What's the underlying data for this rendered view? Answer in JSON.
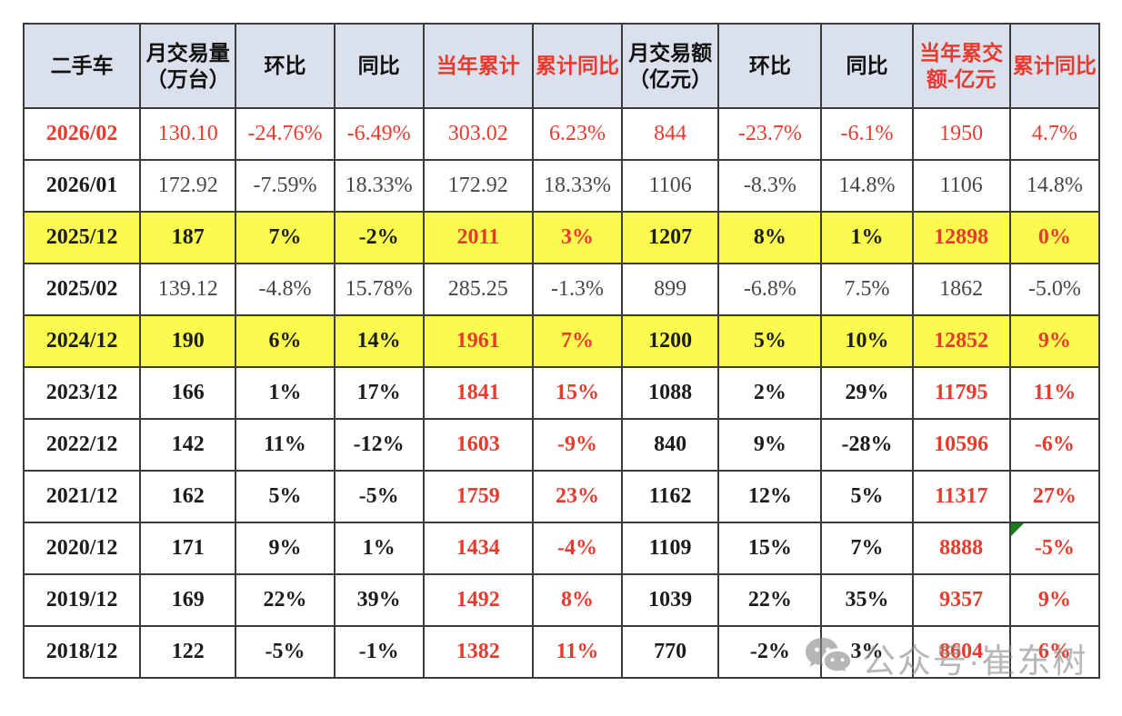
{
  "table": {
    "headers": [
      {
        "label": "二手车",
        "red": false
      },
      {
        "label": "月交易量\n（万台）",
        "red": false
      },
      {
        "label": "环比",
        "red": false
      },
      {
        "label": "同比",
        "red": false
      },
      {
        "label": "当年累计",
        "red": true
      },
      {
        "label": "累计同比",
        "red": true
      },
      {
        "label": "月交易额\n（亿元）",
        "red": false
      },
      {
        "label": "环比",
        "red": false
      },
      {
        "label": "同比",
        "red": false
      },
      {
        "label": "当年累交\n额-亿元",
        "red": true
      },
      {
        "label": "累计同比",
        "red": true
      }
    ],
    "red_value_columns": [
      3,
      4,
      8,
      9
    ],
    "rows": [
      {
        "date": "2026/02",
        "values": [
          "130.10",
          "-24.76%",
          "-6.49%",
          "303.02",
          "6.23%",
          "844",
          "-23.7%",
          "-6.1%",
          "1950",
          "4.7%"
        ],
        "highlight": false,
        "bold": false,
        "all_red": true,
        "cum_red": true,
        "corner_marker_col": null
      },
      {
        "date": "2026/01",
        "values": [
          "172.92",
          "-7.59%",
          "18.33%",
          "172.92",
          "18.33%",
          "1106",
          "-8.3%",
          "14.8%",
          "1106",
          "14.8%"
        ],
        "highlight": false,
        "bold": false,
        "all_red": false,
        "cum_red": false,
        "corner_marker_col": null
      },
      {
        "date": "2025/12",
        "values": [
          "187",
          "7%",
          "-2%",
          "2011",
          "3%",
          "1207",
          "8%",
          "1%",
          "12898",
          "0%"
        ],
        "highlight": true,
        "bold": true,
        "all_red": false,
        "cum_red": true,
        "corner_marker_col": null
      },
      {
        "date": "2025/02",
        "values": [
          "139.12",
          "-4.8%",
          "15.78%",
          "285.25",
          "-1.3%",
          "899",
          "-6.8%",
          "7.5%",
          "1862",
          "-5.0%"
        ],
        "highlight": false,
        "bold": false,
        "all_red": false,
        "cum_red": false,
        "corner_marker_col": null
      },
      {
        "date": "2024/12",
        "values": [
          "190",
          "6%",
          "14%",
          "1961",
          "7%",
          "1200",
          "5%",
          "10%",
          "12852",
          "9%"
        ],
        "highlight": true,
        "bold": true,
        "all_red": false,
        "cum_red": true,
        "corner_marker_col": null
      },
      {
        "date": "2023/12",
        "values": [
          "166",
          "1%",
          "17%",
          "1841",
          "15%",
          "1088",
          "2%",
          "29%",
          "11795",
          "11%"
        ],
        "highlight": false,
        "bold": true,
        "all_red": false,
        "cum_red": true,
        "corner_marker_col": null
      },
      {
        "date": "2022/12",
        "values": [
          "142",
          "11%",
          "-12%",
          "1603",
          "-9%",
          "840",
          "9%",
          "-28%",
          "10596",
          "-6%"
        ],
        "highlight": false,
        "bold": true,
        "all_red": false,
        "cum_red": true,
        "corner_marker_col": null
      },
      {
        "date": "2021/12",
        "values": [
          "162",
          "5%",
          "-5%",
          "1759",
          "23%",
          "1162",
          "12%",
          "5%",
          "11317",
          "27%"
        ],
        "highlight": false,
        "bold": true,
        "all_red": false,
        "cum_red": true,
        "corner_marker_col": null
      },
      {
        "date": "2020/12",
        "values": [
          "171",
          "9%",
          "1%",
          "1434",
          "-4%",
          "1109",
          "15%",
          "7%",
          "8888",
          "-5%"
        ],
        "highlight": false,
        "bold": true,
        "all_red": false,
        "cum_red": true,
        "corner_marker_col": 9
      },
      {
        "date": "2019/12",
        "values": [
          "169",
          "22%",
          "39%",
          "1492",
          "8%",
          "1039",
          "22%",
          "35%",
          "9357",
          "9%"
        ],
        "highlight": false,
        "bold": true,
        "all_red": false,
        "cum_red": true,
        "corner_marker_col": null
      },
      {
        "date": "2018/12",
        "values": [
          "122",
          "-5%",
          "-1%",
          "1382",
          "11%",
          "770",
          "-2%",
          "3%",
          "8604",
          "6%"
        ],
        "highlight": false,
        "bold": true,
        "all_red": false,
        "cum_red": true,
        "corner_marker_col": null
      }
    ]
  },
  "watermark": {
    "icon": "wechat-icon",
    "text": "公众号·崔东树"
  },
  "colors": {
    "header_bg": "#dbe1ec",
    "highlight_row_bg": "#fbfb4f",
    "red_text": "#e93a2e",
    "corner_marker_green": "#1e7a1e",
    "watermark_gray": "#8a8a8a"
  }
}
